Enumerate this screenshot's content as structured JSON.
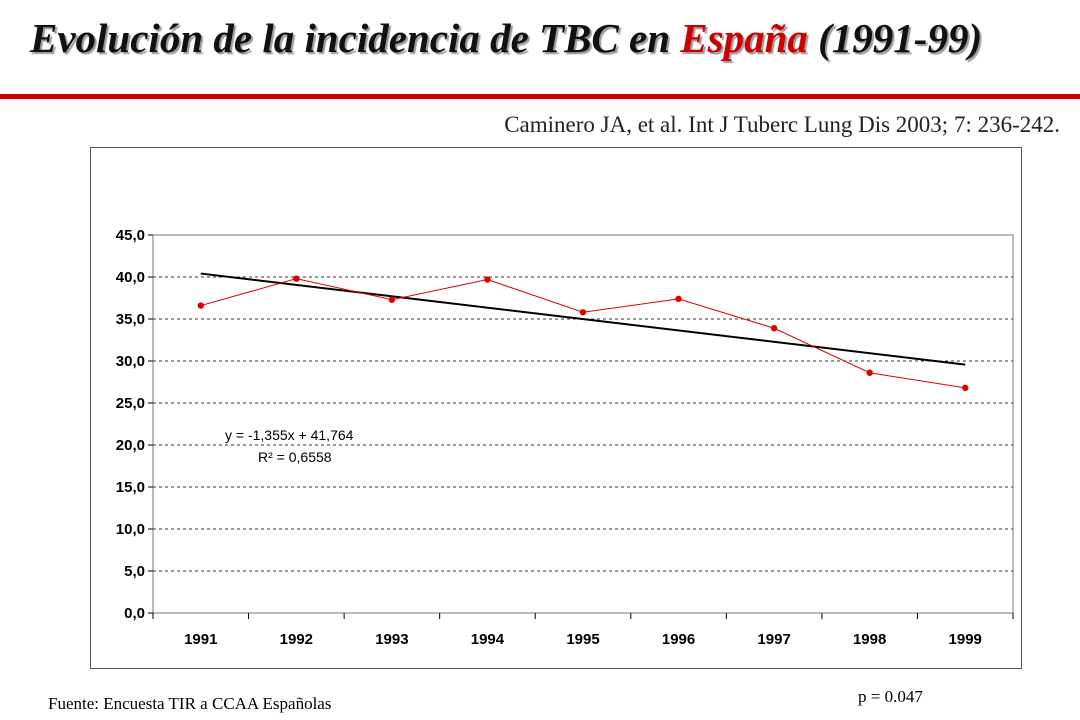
{
  "header": {
    "title_pre": "Evolución de la incidencia de TBC en ",
    "title_highlight": "España",
    "title_post": " (1991-99)",
    "citation": "Caminero JA, et al. Int J Tuberc Lung Dis 2003; 7: 236-242."
  },
  "footer": {
    "source": "Fuente: Encuesta TIR a CCAA Españolas",
    "p_value": "p = 0.047"
  },
  "chart_data": {
    "type": "line",
    "title": "",
    "xlabel": "",
    "ylabel": "",
    "categories": [
      "1991",
      "1992",
      "1993",
      "1994",
      "1995",
      "1996",
      "1997",
      "1998",
      "1999"
    ],
    "series": [
      {
        "values": [
          36.6,
          39.8,
          37.3,
          39.7,
          35.8,
          37.4,
          33.9,
          28.6,
          26.8
        ],
        "color": "#dd0000"
      }
    ],
    "trendline": {
      "type": "linear",
      "slope": -1.355,
      "intercept": 41.764,
      "color": "#000000",
      "equation_label": "y = -1,355x + 41,764",
      "r2_label": "R² = 0,6558"
    },
    "ylim": [
      0,
      45
    ],
    "yticks": [
      "0,0",
      "5,0",
      "10,0",
      "15,0",
      "20,0",
      "25,0",
      "30,0",
      "35,0",
      "40,0",
      "45,0"
    ],
    "grid": true
  }
}
